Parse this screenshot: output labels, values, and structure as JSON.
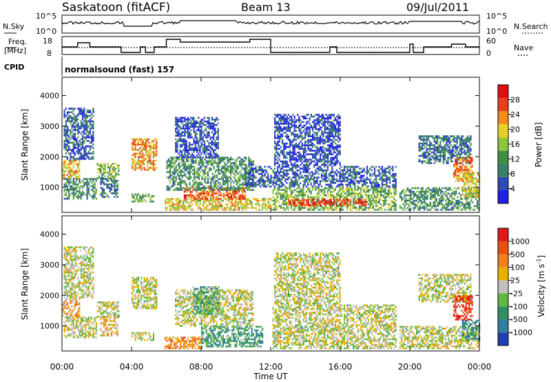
{
  "header": {
    "station": "Saskatoon (fitACF)",
    "beam": "Beam 13",
    "date": "09/Jul/2011"
  },
  "noise_panel": {
    "left_label": "N.Sky",
    "right_label": "N.Search",
    "left_ticks": [
      "10^5",
      "10^0"
    ],
    "right_ticks": [
      "10^5",
      "10^0"
    ]
  },
  "freq_panel": {
    "left_label_1": "Freq.",
    "left_label_2": "[MHz]",
    "left_ticks": [
      "18",
      "8"
    ],
    "right_label": "Nave",
    "right_ticks": [
      "60",
      "0"
    ]
  },
  "cpid_panel": {
    "label": "CPID",
    "text": "normalsound (fast) 157"
  },
  "colors": {
    "power": [
      "#1f1fe6",
      "#2e4ab4",
      "#3a7f6a",
      "#3f8f3f",
      "#8cc63e",
      "#e8d02a",
      "#f28a1e",
      "#e8401c",
      "#e01010"
    ],
    "velocity": [
      "#1f3fb0",
      "#2f7fa0",
      "#2f8f5f",
      "#5fb83f",
      "#c0c0c0",
      "#e8b000",
      "#f08020",
      "#e85010",
      "#e01818"
    ]
  },
  "chart_data": [
    {
      "type": "heatmap",
      "title": "",
      "xlabel": "",
      "ylabel": "Slant Range [km]",
      "x_ticks": [
        "00:00",
        "04:00",
        "08:00",
        "12:00",
        "16:00",
        "20:00",
        "00:00"
      ],
      "xlim": [
        0,
        24
      ],
      "y_ticks": [
        "1000",
        "2000",
        "3000",
        "4000"
      ],
      "ylim": [
        180,
        4600
      ],
      "colorbar": {
        "label": "Power [dB]",
        "ticks": [
          "28",
          "24",
          "20",
          "16",
          "12",
          "8",
          "4"
        ],
        "range": [
          0,
          32
        ]
      },
      "regions": [
        {
          "t0": 0.0,
          "t1": 1.0,
          "r0": 1300,
          "r1": 1900,
          "level": 0.65
        },
        {
          "t0": 0.1,
          "t1": 2.0,
          "r0": 600,
          "r1": 1300,
          "level": 0.35
        },
        {
          "t0": 0.1,
          "t1": 1.8,
          "r0": 1900,
          "r1": 3600,
          "level": 0.2
        },
        {
          "t0": 2.0,
          "t1": 3.3,
          "r0": 1300,
          "r1": 1800,
          "level": 0.45
        },
        {
          "t0": 2.2,
          "t1": 3.2,
          "r0": 700,
          "r1": 1300,
          "level": 0.25
        },
        {
          "t0": 4.0,
          "t1": 5.4,
          "r0": 1600,
          "r1": 2600,
          "level": 0.7
        },
        {
          "t0": 4.0,
          "t1": 5.3,
          "r0": 550,
          "r1": 800,
          "level": 0.4
        },
        {
          "t0": 5.9,
          "t1": 12.0,
          "r0": 250,
          "r1": 650,
          "level": 0.6
        },
        {
          "t0": 7.0,
          "t1": 10.5,
          "r0": 600,
          "r1": 1000,
          "level": 0.8
        },
        {
          "t0": 6.0,
          "t1": 11.0,
          "r0": 900,
          "r1": 2000,
          "level": 0.35
        },
        {
          "t0": 6.5,
          "t1": 9.0,
          "r0": 2000,
          "r1": 3300,
          "level": 0.15
        },
        {
          "t0": 10.5,
          "t1": 12.0,
          "r0": 1000,
          "r1": 1700,
          "level": 0.2
        },
        {
          "t0": 12.1,
          "t1": 19.2,
          "r0": 250,
          "r1": 1000,
          "level": 0.45
        },
        {
          "t0": 13.0,
          "t1": 17.5,
          "r0": 400,
          "r1": 620,
          "level": 0.85
        },
        {
          "t0": 12.1,
          "t1": 19.2,
          "r0": 1000,
          "r1": 1700,
          "level": 0.2
        },
        {
          "t0": 12.2,
          "t1": 16.0,
          "r0": 1700,
          "r1": 3400,
          "level": 0.15
        },
        {
          "t0": 19.4,
          "t1": 24.0,
          "r0": 250,
          "r1": 1000,
          "level": 0.35
        },
        {
          "t0": 20.5,
          "t1": 23.5,
          "r0": 1800,
          "r1": 2700,
          "level": 0.25
        },
        {
          "t0": 22.5,
          "t1": 23.6,
          "r0": 1200,
          "r1": 2000,
          "level": 0.75
        },
        {
          "t0": 23.0,
          "t1": 24.0,
          "r0": 700,
          "r1": 1500,
          "level": 0.6
        }
      ]
    },
    {
      "type": "heatmap",
      "title": "",
      "xlabel": "Time UT",
      "ylabel": "Slant Range [km]",
      "x_ticks": [
        "00:00",
        "04:00",
        "08:00",
        "12:00",
        "16:00",
        "20:00",
        "00:00"
      ],
      "xlim": [
        0,
        24
      ],
      "y_ticks": [
        "1000",
        "2000",
        "3000",
        "4000"
      ],
      "ylim": [
        180,
        4600
      ],
      "colorbar": {
        "label": "Velocity [m s^-1]",
        "ticks": [
          "1000",
          "500",
          "100",
          "25",
          "-25",
          "-100",
          "-500",
          "-1000"
        ],
        "range": [
          -1250,
          1250
        ]
      },
      "regions": [
        {
          "t0": 0.0,
          "t1": 1.0,
          "r0": 1300,
          "r1": 1900,
          "level": 0.65
        },
        {
          "t0": 0.1,
          "t1": 2.0,
          "r0": 600,
          "r1": 1300,
          "level": 0.5
        },
        {
          "t0": 0.1,
          "t1": 1.8,
          "r0": 1900,
          "r1": 3600,
          "level": 0.5
        },
        {
          "t0": 2.0,
          "t1": 3.3,
          "r0": 1300,
          "r1": 1800,
          "level": 0.5
        },
        {
          "t0": 2.2,
          "t1": 3.2,
          "r0": 700,
          "r1": 1300,
          "level": 0.6
        },
        {
          "t0": 4.0,
          "t1": 5.4,
          "r0": 1600,
          "r1": 2600,
          "level": 0.5
        },
        {
          "t0": 4.0,
          "t1": 5.3,
          "r0": 550,
          "r1": 800,
          "level": 0.5
        },
        {
          "t0": 5.9,
          "t1": 8.0,
          "r0": 250,
          "r1": 650,
          "level": 0.7
        },
        {
          "t0": 8.0,
          "t1": 11.5,
          "r0": 300,
          "r1": 1000,
          "level": 0.3
        },
        {
          "t0": 6.5,
          "t1": 11.0,
          "r0": 1000,
          "r1": 2200,
          "level": 0.5
        },
        {
          "t0": 7.5,
          "t1": 9.0,
          "r0": 1400,
          "r1": 2300,
          "level": 0.35
        },
        {
          "t0": 12.1,
          "t1": 19.2,
          "r0": 250,
          "r1": 1000,
          "level": 0.5
        },
        {
          "t0": 12.1,
          "t1": 19.2,
          "r0": 1000,
          "r1": 1700,
          "level": 0.5
        },
        {
          "t0": 12.2,
          "t1": 16.0,
          "r0": 1700,
          "r1": 3400,
          "level": 0.5
        },
        {
          "t0": 19.4,
          "t1": 24.0,
          "r0": 250,
          "r1": 1000,
          "level": 0.5
        },
        {
          "t0": 20.5,
          "t1": 23.5,
          "r0": 1800,
          "r1": 2700,
          "level": 0.5
        },
        {
          "t0": 22.5,
          "t1": 23.6,
          "r0": 1200,
          "r1": 2000,
          "level": 0.92
        },
        {
          "t0": 23.0,
          "t1": 24.0,
          "r0": 500,
          "r1": 1200,
          "level": 0.25
        }
      ]
    }
  ]
}
